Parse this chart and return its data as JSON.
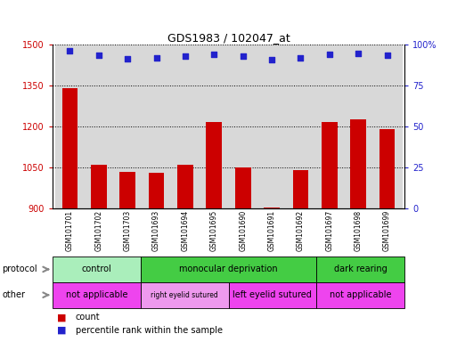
{
  "title": "GDS1983 / 102047_at",
  "samples": [
    "GSM101701",
    "GSM101702",
    "GSM101703",
    "GSM101693",
    "GSM101694",
    "GSM101695",
    "GSM101690",
    "GSM101691",
    "GSM101692",
    "GSM101697",
    "GSM101698",
    "GSM101699"
  ],
  "counts": [
    1340,
    1060,
    1035,
    1030,
    1060,
    1215,
    1050,
    905,
    1040,
    1215,
    1225,
    1190
  ],
  "percentiles": [
    96,
    93.5,
    91.5,
    92,
    93,
    94,
    93,
    91,
    92,
    94,
    94.5,
    93.5
  ],
  "ylim_left": [
    900,
    1500
  ],
  "ylim_right": [
    0,
    100
  ],
  "yticks_left": [
    900,
    1050,
    1200,
    1350,
    1500
  ],
  "yticks_right": [
    0,
    25,
    50,
    75,
    100
  ],
  "bar_color": "#cc0000",
  "dot_color": "#2222cc",
  "protocol_groups": [
    {
      "label": "control",
      "start": 0,
      "end": 3,
      "color": "#aaeebb"
    },
    {
      "label": "monocular deprivation",
      "start": 3,
      "end": 9,
      "color": "#44cc44"
    },
    {
      "label": "dark rearing",
      "start": 9,
      "end": 12,
      "color": "#44cc44"
    }
  ],
  "other_groups": [
    {
      "label": "not applicable",
      "start": 0,
      "end": 3,
      "color": "#ee44ee"
    },
    {
      "label": "right eyelid sutured",
      "start": 3,
      "end": 6,
      "color": "#ee99ee"
    },
    {
      "label": "left eyelid sutured",
      "start": 6,
      "end": 9,
      "color": "#ee44ee"
    },
    {
      "label": "not applicable",
      "start": 9,
      "end": 12,
      "color": "#ee44ee"
    }
  ],
  "legend_items": [
    {
      "label": "count",
      "color": "#cc0000"
    },
    {
      "label": "percentile rank within the sample",
      "color": "#2222cc"
    }
  ]
}
